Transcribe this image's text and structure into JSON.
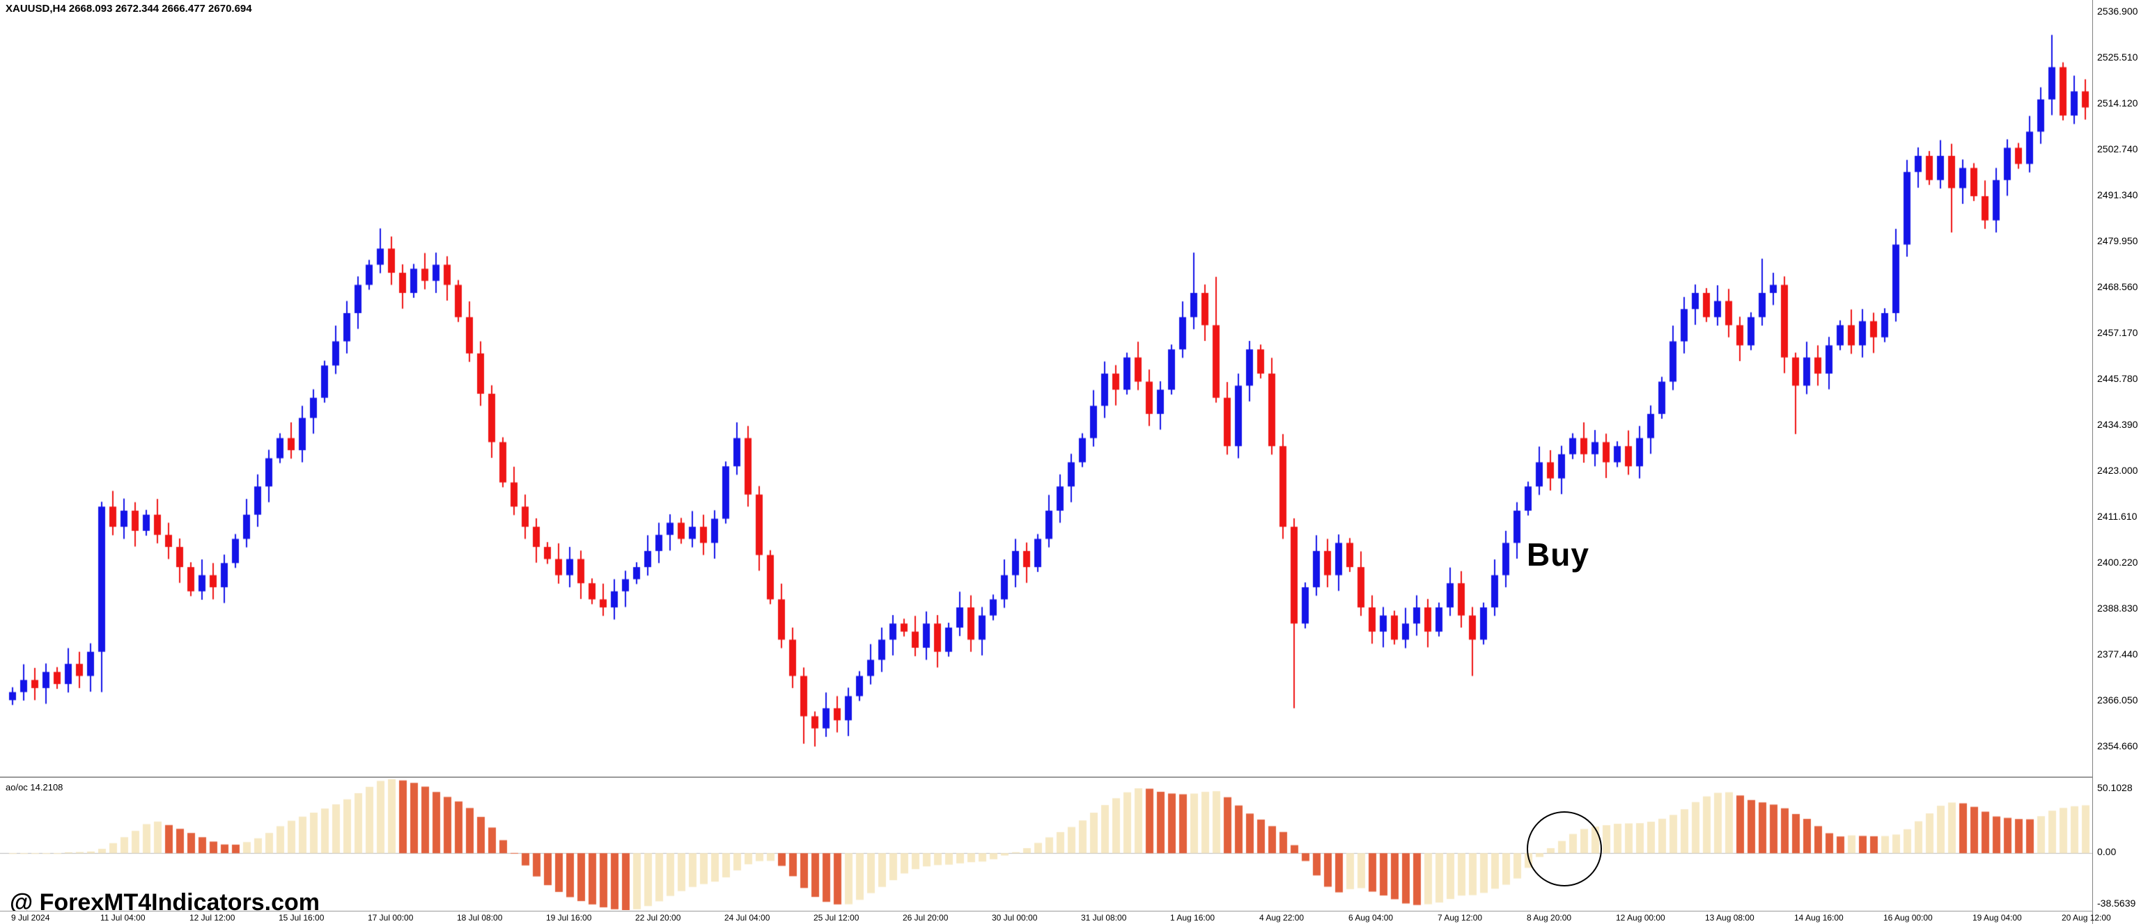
{
  "header": {
    "quote_line": "XAUUSD,H4 2668.093 2672.344 2666.477 2670.694"
  },
  "annotations": {
    "buy_label": "Buy",
    "watermark": "@ ForexMT4Indicators.com"
  },
  "chart_data": {
    "type": "candlestick",
    "symbol": "XAUUSD",
    "timeframe": "H4",
    "price_axis": {
      "top_value": 2536.9,
      "step": 11.39,
      "labels": [
        "2536.900",
        "2525.510",
        "2514.120",
        "2502.740",
        "2491.340",
        "2479.950",
        "2468.560",
        "2457.170",
        "2445.780",
        "2434.390",
        "2423.000",
        "2411.610",
        "2400.220",
        "2388.830",
        "2377.440",
        "2366.050",
        "2354.660"
      ]
    },
    "time_labels": [
      "9 Jul 2024",
      "11 Jul 04:00",
      "12 Jul 12:00",
      "15 Jul 16:00",
      "17 Jul 00:00",
      "18 Jul 08:00",
      "19 Jul 16:00",
      "22 Jul 20:00",
      "24 Jul 04:00",
      "25 Jul 12:00",
      "26 Jul 20:00",
      "30 Jul 00:00",
      "31 Jul 08:00",
      "1 Aug 16:00",
      "4 Aug 22:00",
      "6 Aug 04:00",
      "7 Aug 12:00",
      "8 Aug 20:00",
      "12 Aug 00:00",
      "13 Aug 08:00",
      "14 Aug 16:00",
      "16 Aug 00:00",
      "19 Aug 04:00",
      "20 Aug 12:00"
    ],
    "candles": {
      "first_open": 2366,
      "closes": [
        2368,
        2371,
        2369,
        2373,
        2370,
        2375,
        2372,
        2378,
        2414,
        2409,
        2413,
        2408,
        2412,
        2407,
        2404,
        2399,
        2393,
        2397,
        2394,
        2400,
        2406,
        2412,
        2419,
        2426,
        2431,
        2428,
        2436,
        2441,
        2449,
        2455,
        2462,
        2469,
        2474,
        2478,
        2472,
        2467,
        2473,
        2470,
        2474,
        2469,
        2461,
        2452,
        2442,
        2430,
        2420,
        2414,
        2409,
        2404,
        2401,
        2397,
        2401,
        2395,
        2391,
        2389,
        2393,
        2396,
        2399,
        2403,
        2407,
        2410,
        2406,
        2409,
        2405,
        2411,
        2424,
        2431,
        2417,
        2402,
        2391,
        2381,
        2372,
        2362,
        2359,
        2364,
        2361,
        2367,
        2372,
        2376,
        2381,
        2385,
        2383,
        2379,
        2385,
        2378,
        2384,
        2389,
        2381,
        2387,
        2391,
        2397,
        2403,
        2399,
        2406,
        2413,
        2419,
        2425,
        2431,
        2439,
        2447,
        2443,
        2451,
        2445,
        2437,
        2443,
        2453,
        2461,
        2467,
        2459,
        2441,
        2429,
        2444,
        2453,
        2447,
        2429,
        2409,
        2385,
        2394,
        2403,
        2397,
        2405,
        2399,
        2389,
        2383,
        2387,
        2381,
        2385,
        2389,
        2383,
        2389,
        2395,
        2387,
        2381,
        2389,
        2397,
        2405,
        2413,
        2419,
        2425,
        2421,
        2427,
        2431,
        2427,
        2430,
        2425,
        2429,
        2424,
        2431,
        2437,
        2445,
        2455,
        2463,
        2467,
        2461,
        2465,
        2459,
        2454,
        2461,
        2467,
        2469,
        2451,
        2444,
        2451,
        2447,
        2454,
        2459,
        2454,
        2460,
        2456,
        2462,
        2479,
        2497,
        2501,
        2495,
        2501,
        2493,
        2498,
        2491,
        2485,
        2495,
        2503,
        2499,
        2507,
        2515,
        2523,
        2511,
        2517,
        2513
      ],
      "wick_overrides": {
        "8": {
          "low": 2368
        },
        "33": {
          "high": 2483
        },
        "65": {
          "high": 2434.5
        },
        "71": {
          "low": 2355.2
        },
        "72": {
          "low": 2354.5
        },
        "106": {
          "high": 2477
        },
        "108": {
          "high": 2471
        },
        "115": {
          "low": 2364
        },
        "131": {
          "low": 2372
        },
        "157": {
          "high": 2475.5
        },
        "160": {
          "low": 2432
        },
        "174": {
          "low": 2482
        },
        "183": {
          "high": 2531
        }
      }
    },
    "oscillator": {
      "name": "ao/oc",
      "label": "ao/oc 14.2108",
      "display_value": "14.2108",
      "scale_max": 50.1028,
      "scale_min": -38.5639,
      "axis_labels": [
        "50.1028",
        "0.00",
        "-38.5639"
      ],
      "fast_period": 5,
      "slow_period": 34
    },
    "colors": {
      "bull": "#1414e8",
      "bear": "#ef1515",
      "osc_up": "#f6e8c3",
      "osc_down": "#e2603c",
      "zero_line": "#bbbbbb"
    }
  }
}
